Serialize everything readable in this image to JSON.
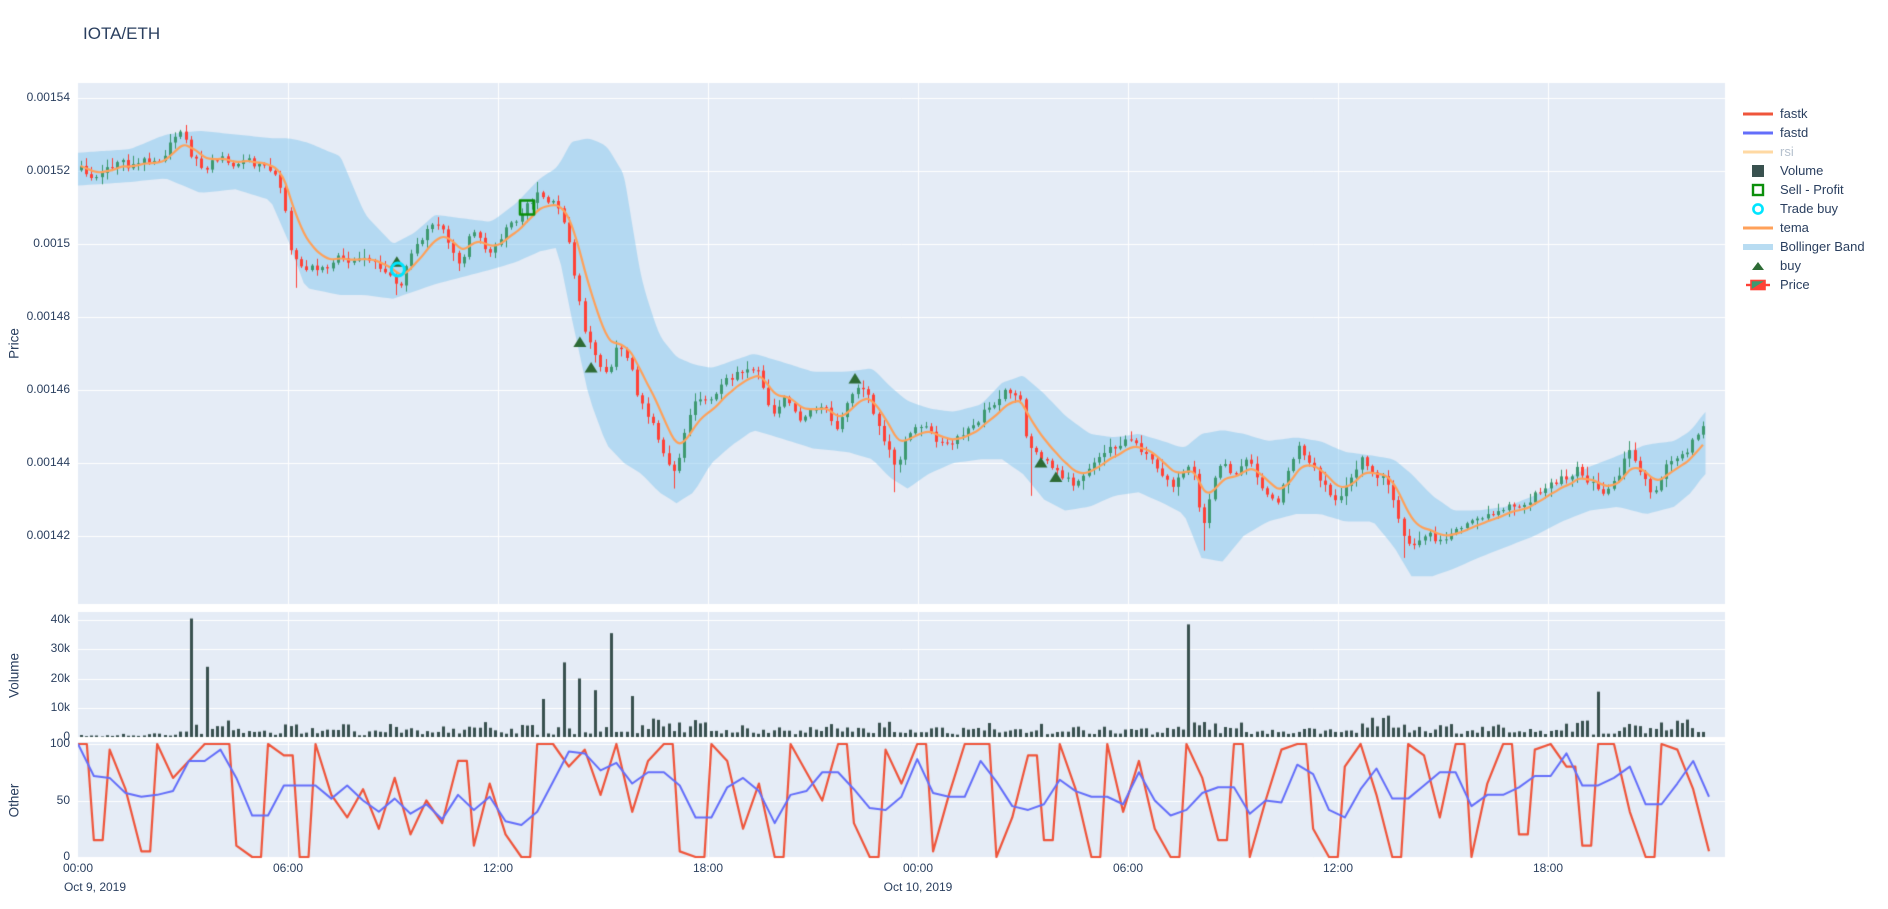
{
  "title": "IOTA/ETH",
  "colors": {
    "text": "#2a3f5f",
    "plot_bg": "#E5ECF6",
    "grid": "#ffffff",
    "candle_up": "#3D9970",
    "candle_down": "#FF4136",
    "tema": "#FFA15A",
    "bollinger_fill": "rgba(140,203,238,0.55)",
    "bollinger_swatch": "#B8DCF2",
    "fastk": "#EF553B",
    "fastd": "#636EFA",
    "rsi_muted": "#FFD9A3",
    "volume_bar": "#39514F",
    "buy_marker": "#2D6B35",
    "sell_marker": "#0B8F0B",
    "trade_buy_marker": "#00E5FF"
  },
  "axes": {
    "price": {
      "label": "Price",
      "ticks": [
        {
          "label": "0.00154",
          "value": 1540
        },
        {
          "label": "0.00152",
          "value": 1520
        },
        {
          "label": "0.0015",
          "value": 1500
        },
        {
          "label": "0.00148",
          "value": 1480
        },
        {
          "label": "0.00146",
          "value": 1460
        },
        {
          "label": "0.00144",
          "value": 1440
        },
        {
          "label": "0.00142",
          "value": 1420
        }
      ]
    },
    "volume": {
      "label": "Volume",
      "ticks": [
        {
          "label": "40k",
          "value": 40
        },
        {
          "label": "30k",
          "value": 30
        },
        {
          "label": "20k",
          "value": 20
        },
        {
          "label": "10k",
          "value": 10
        },
        {
          "label": "0",
          "value": 0
        }
      ]
    },
    "other": {
      "label": "Other",
      "ticks": [
        {
          "label": "100",
          "value": 100
        },
        {
          "label": "50",
          "value": 50
        },
        {
          "label": "0",
          "value": 0
        }
      ]
    },
    "time": {
      "ticks": [
        {
          "label": "00:00",
          "t": 0
        },
        {
          "label": "06:00",
          "t": 6
        },
        {
          "label": "12:00",
          "t": 12
        },
        {
          "label": "18:00",
          "t": 18
        },
        {
          "label": "00:00",
          "t": 24
        },
        {
          "label": "06:00",
          "t": 30
        },
        {
          "label": "12:00",
          "t": 36
        },
        {
          "label": "18:00",
          "t": 42
        }
      ],
      "dates": [
        {
          "label": "Oct 9, 2019",
          "t": 0,
          "dx": 17
        },
        {
          "label": "Oct 10, 2019",
          "t": 24,
          "dx": 0
        }
      ]
    }
  },
  "legend": {
    "items": [
      {
        "label": "fastk",
        "swatch": "line",
        "color": "#EF553B",
        "muted": false
      },
      {
        "label": "fastd",
        "swatch": "line",
        "color": "#636EFA",
        "muted": false
      },
      {
        "label": "rsi",
        "swatch": "line",
        "color": "#FFD9A3",
        "muted": true
      },
      {
        "label": "Volume",
        "swatch": "square-fill",
        "color": "#39514F",
        "muted": false
      },
      {
        "label": "Sell - Profit",
        "swatch": "square-open",
        "color": "#0B8F0B",
        "muted": false
      },
      {
        "label": "Trade buy",
        "swatch": "circle-open",
        "color": "#00E5FF",
        "muted": false
      },
      {
        "label": "tema",
        "swatch": "line",
        "color": "#FFA15A",
        "muted": false
      },
      {
        "label": "Bollinger Band",
        "swatch": "band",
        "color": "#B8DCF2",
        "muted": false
      },
      {
        "label": "buy",
        "swatch": "triangle-fill",
        "color": "#2D6B35",
        "muted": false
      },
      {
        "label": "Price",
        "swatch": "candle",
        "color": "#3D9970",
        "color2": "#FF4136",
        "muted": false
      }
    ]
  },
  "chart_data": {
    "type": "candlestick+volume+oscillator",
    "x_unit": "hours since Oct 9, 2019 00:00",
    "x_range": [
      0,
      47.06
    ],
    "price_unit_scale": 1e-06,
    "price_range_micro": [
      1401,
      1544
    ],
    "candle_interval_h": 0.15,
    "series": [
      {
        "name": "fastk",
        "type": "line",
        "panel": "other",
        "visible": true
      },
      {
        "name": "fastd",
        "type": "line",
        "panel": "other",
        "visible": true
      },
      {
        "name": "rsi",
        "type": "line",
        "panel": "other",
        "visible": false
      },
      {
        "name": "Volume",
        "type": "bar",
        "panel": "volume",
        "visible": true
      },
      {
        "name": "Sell - Profit",
        "type": "marker",
        "panel": "price",
        "visible": true
      },
      {
        "name": "Trade buy",
        "type": "marker",
        "panel": "price",
        "visible": true
      },
      {
        "name": "tema",
        "type": "line",
        "panel": "price",
        "visible": true
      },
      {
        "name": "Bollinger Band",
        "type": "band",
        "panel": "price",
        "visible": true
      },
      {
        "name": "buy",
        "type": "marker",
        "panel": "price",
        "visible": true
      },
      {
        "name": "Price",
        "type": "candlestick",
        "panel": "price",
        "visible": true
      }
    ],
    "price_keyframes": [
      [
        0,
        1521
      ],
      [
        0.4,
        1519
      ],
      [
        0.8,
        1520
      ],
      [
        1.2,
        1522
      ],
      [
        1.6,
        1521
      ],
      [
        2.0,
        1523
      ],
      [
        2.4,
        1524
      ],
      [
        2.8,
        1529
      ],
      [
        3.0,
        1530
      ],
      [
        3.3,
        1523
      ],
      [
        3.7,
        1521
      ],
      [
        4.0,
        1524
      ],
      [
        4.4,
        1521
      ],
      [
        4.8,
        1523
      ],
      [
        5.2,
        1522
      ],
      [
        5.6,
        1519
      ],
      [
        5.9,
        1512
      ],
      [
        6.1,
        1497
      ],
      [
        6.4,
        1494
      ],
      [
        7.0,
        1494
      ],
      [
        7.5,
        1496
      ],
      [
        8.0,
        1496
      ],
      [
        8.5,
        1494
      ],
      [
        8.9,
        1491
      ],
      [
        9.2,
        1489
      ],
      [
        9.5,
        1497
      ],
      [
        9.9,
        1503
      ],
      [
        10.3,
        1506
      ],
      [
        10.7,
        1497
      ],
      [
        10.9,
        1493
      ],
      [
        11.2,
        1503
      ],
      [
        11.5,
        1501
      ],
      [
        11.8,
        1498
      ],
      [
        12.1,
        1502
      ],
      [
        12.5,
        1507
      ],
      [
        12.9,
        1511
      ],
      [
        13.2,
        1514
      ],
      [
        13.5,
        1512
      ],
      [
        13.8,
        1509
      ],
      [
        14.0,
        1503
      ],
      [
        14.2,
        1489
      ],
      [
        14.5,
        1475
      ],
      [
        14.8,
        1468
      ],
      [
        15.1,
        1464
      ],
      [
        15.4,
        1471
      ],
      [
        15.7,
        1469
      ],
      [
        16.0,
        1458
      ],
      [
        16.3,
        1452
      ],
      [
        16.6,
        1447
      ],
      [
        16.9,
        1439
      ],
      [
        17.1,
        1437
      ],
      [
        17.4,
        1452
      ],
      [
        17.7,
        1459
      ],
      [
        18.0,
        1456
      ],
      [
        18.3,
        1461
      ],
      [
        18.7,
        1464
      ],
      [
        19.1,
        1466
      ],
      [
        19.5,
        1464
      ],
      [
        19.8,
        1452
      ],
      [
        20.2,
        1459
      ],
      [
        20.6,
        1452
      ],
      [
        21.0,
        1456
      ],
      [
        21.4,
        1455
      ],
      [
        21.7,
        1449
      ],
      [
        22.0,
        1458
      ],
      [
        22.4,
        1462
      ],
      [
        22.8,
        1452
      ],
      [
        23.1,
        1445
      ],
      [
        23.35,
        1439
      ],
      [
        23.6,
        1445
      ],
      [
        24.0,
        1450
      ],
      [
        24.4,
        1448
      ],
      [
        24.8,
        1444
      ],
      [
        25.2,
        1448
      ],
      [
        25.7,
        1452
      ],
      [
        26.1,
        1456
      ],
      [
        26.4,
        1459
      ],
      [
        26.9,
        1458
      ],
      [
        27.15,
        1444
      ],
      [
        27.5,
        1441
      ],
      [
        27.8,
        1440
      ],
      [
        28.1,
        1437
      ],
      [
        28.45,
        1433
      ],
      [
        28.8,
        1438
      ],
      [
        29.3,
        1442
      ],
      [
        29.7,
        1445
      ],
      [
        30.1,
        1446
      ],
      [
        30.5,
        1443
      ],
      [
        30.9,
        1437
      ],
      [
        31.3,
        1434
      ],
      [
        31.7,
        1438
      ],
      [
        31.95,
        1436
      ],
      [
        32.1,
        1421
      ],
      [
        32.35,
        1432
      ],
      [
        32.6,
        1440
      ],
      [
        33.0,
        1437
      ],
      [
        33.4,
        1441
      ],
      [
        33.8,
        1434
      ],
      [
        34.2,
        1428
      ],
      [
        34.6,
        1439
      ],
      [
        34.9,
        1445
      ],
      [
        35.3,
        1439
      ],
      [
        35.7,
        1432
      ],
      [
        36.0,
        1428
      ],
      [
        36.3,
        1435
      ],
      [
        36.7,
        1441
      ],
      [
        37.1,
        1437
      ],
      [
        37.5,
        1434
      ],
      [
        37.85,
        1420
      ],
      [
        38.2,
        1417
      ],
      [
        38.6,
        1420
      ],
      [
        39.0,
        1419
      ],
      [
        39.5,
        1422
      ],
      [
        40.0,
        1425
      ],
      [
        40.5,
        1426
      ],
      [
        41.0,
        1428
      ],
      [
        41.5,
        1430
      ],
      [
        42.0,
        1433
      ],
      [
        42.4,
        1436
      ],
      [
        42.8,
        1438
      ],
      [
        43.2,
        1435
      ],
      [
        43.6,
        1432
      ],
      [
        44.0,
        1436
      ],
      [
        44.3,
        1444
      ],
      [
        44.6,
        1438
      ],
      [
        45.0,
        1431
      ],
      [
        45.4,
        1439
      ],
      [
        45.8,
        1442
      ],
      [
        46.0,
        1444
      ],
      [
        46.3,
        1448
      ],
      [
        46.5,
        1452
      ],
      [
        46.6,
        1449
      ]
    ],
    "bollinger_keyframes": [
      [
        0,
        1525,
        1516
      ],
      [
        1.5,
        1526,
        1517
      ],
      [
        2.5,
        1530,
        1518
      ],
      [
        3.5,
        1531,
        1514
      ],
      [
        4.5,
        1530,
        1515
      ],
      [
        5.5,
        1529,
        1512
      ],
      [
        6.0,
        1529,
        1501
      ],
      [
        6.5,
        1528,
        1488
      ],
      [
        7.5,
        1524,
        1486
      ],
      [
        8.2,
        1508,
        1486
      ],
      [
        9.0,
        1500,
        1485
      ],
      [
        9.6,
        1503,
        1487
      ],
      [
        10.2,
        1508,
        1489
      ],
      [
        11.0,
        1507,
        1491
      ],
      [
        11.8,
        1506,
        1493
      ],
      [
        12.5,
        1511,
        1495
      ],
      [
        13.2,
        1518,
        1498
      ],
      [
        13.7,
        1521,
        1499
      ],
      [
        14.1,
        1528,
        1480
      ],
      [
        14.6,
        1529,
        1458
      ],
      [
        15.1,
        1527,
        1445
      ],
      [
        15.6,
        1519,
        1440
      ],
      [
        16.1,
        1490,
        1437
      ],
      [
        16.6,
        1475,
        1432
      ],
      [
        17.1,
        1469,
        1429
      ],
      [
        17.6,
        1467,
        1432
      ],
      [
        18.1,
        1466,
        1440
      ],
      [
        18.7,
        1468,
        1445
      ],
      [
        19.3,
        1470,
        1449
      ],
      [
        20.0,
        1468,
        1447
      ],
      [
        21.0,
        1465,
        1444
      ],
      [
        22.0,
        1465,
        1443
      ],
      [
        22.7,
        1466,
        1441
      ],
      [
        23.2,
        1461,
        1436
      ],
      [
        23.7,
        1457,
        1433
      ],
      [
        24.3,
        1455,
        1437
      ],
      [
        25.0,
        1454,
        1440
      ],
      [
        25.8,
        1456,
        1441
      ],
      [
        26.4,
        1462,
        1441
      ],
      [
        27.0,
        1464,
        1437
      ],
      [
        27.6,
        1459,
        1430
      ],
      [
        28.2,
        1453,
        1427
      ],
      [
        28.9,
        1448,
        1428
      ],
      [
        29.6,
        1447,
        1431
      ],
      [
        30.3,
        1448,
        1432
      ],
      [
        31.0,
        1446,
        1429
      ],
      [
        31.6,
        1444,
        1426
      ],
      [
        32.1,
        1448,
        1414
      ],
      [
        32.7,
        1449,
        1413
      ],
      [
        33.3,
        1448,
        1420
      ],
      [
        34.0,
        1446,
        1424
      ],
      [
        34.8,
        1447,
        1426
      ],
      [
        35.5,
        1446,
        1426
      ],
      [
        36.2,
        1443,
        1424
      ],
      [
        37.0,
        1442,
        1424
      ],
      [
        37.6,
        1441,
        1417
      ],
      [
        38.1,
        1437,
        1409
      ],
      [
        38.7,
        1431,
        1409
      ],
      [
        39.3,
        1427,
        1411
      ],
      [
        40.0,
        1427,
        1414
      ],
      [
        40.8,
        1428,
        1417
      ],
      [
        41.6,
        1431,
        1420
      ],
      [
        42.4,
        1435,
        1424
      ],
      [
        43.2,
        1439,
        1427
      ],
      [
        44.0,
        1442,
        1428
      ],
      [
        44.8,
        1445,
        1426
      ],
      [
        45.6,
        1446,
        1428
      ],
      [
        46.1,
        1449,
        1432
      ],
      [
        46.4,
        1453,
        1436
      ],
      [
        46.6,
        1455,
        1438
      ]
    ],
    "wick_events": [
      [
        3.0,
        1531,
        "high"
      ],
      [
        6.15,
        1488,
        "low"
      ],
      [
        9.1,
        1486,
        "low"
      ],
      [
        13.1,
        1517,
        "high"
      ],
      [
        17.0,
        1433,
        "low"
      ],
      [
        23.3,
        1432,
        "low"
      ],
      [
        27.2,
        1431,
        "low"
      ],
      [
        32.1,
        1416,
        "low"
      ],
      [
        37.9,
        1414,
        "low"
      ],
      [
        44.3,
        1446,
        "high"
      ]
    ],
    "volume_bins_k": [
      1.2,
      0.8,
      1.5,
      1.0,
      2.0,
      1.4,
      40.5,
      24.0,
      8.0,
      4.5,
      3.0,
      2.5,
      6.0,
      5.0,
      3.5,
      6.0,
      2.5,
      3.0,
      7.0,
      4.0,
      3.0,
      5.0,
      4.5,
      8.0,
      6.0,
      4.0,
      8.0,
      13.0,
      25.5,
      20.0,
      16.0,
      35.5,
      14.0,
      12.0,
      9.0,
      7.0,
      12.0,
      5.0,
      4.0,
      6.5,
      4.0,
      7.5,
      3.5,
      5.5,
      7.0,
      4.5,
      6.0,
      8.0,
      3.5,
      3.0,
      4.5,
      2.5,
      5.0,
      6.5,
      3.0,
      4.0,
      7.0,
      3.5,
      5.0,
      4.0,
      5.0,
      4.0,
      6.0,
      3.5,
      5.5,
      38.5,
      7.0,
      5.0,
      6.5,
      4.0,
      5.5,
      3.5,
      5.0,
      4.5,
      3.0,
      6.0,
      9.0,
      12.0,
      5.5,
      4.0,
      7.0,
      3.5,
      5.0,
      6.0,
      4.5,
      5.5,
      4.0,
      6.0,
      7.5,
      15.5,
      5.0,
      7.0,
      4.5,
      6.5,
      8.5,
      5.0
    ],
    "volume_range_k": [
      0,
      42.7
    ],
    "oscillator_range": [
      0,
      100
    ],
    "fastk": [
      100,
      15,
      95,
      60,
      5,
      100,
      70,
      85,
      100,
      100,
      10,
      0,
      100,
      90,
      0,
      100,
      55,
      35,
      60,
      25,
      70,
      20,
      50,
      30,
      85,
      10,
      65,
      20,
      0,
      100,
      100,
      80,
      95,
      55,
      100,
      40,
      85,
      100,
      5,
      0,
      100,
      85,
      25,
      65,
      0,
      100,
      75,
      50,
      100,
      30,
      0,
      95,
      65,
      100,
      5,
      55,
      100,
      100,
      0,
      35,
      90,
      15,
      100,
      60,
      0,
      100,
      40,
      85,
      25,
      0,
      100,
      70,
      15,
      100,
      0,
      50,
      95,
      100,
      25,
      0,
      80,
      100,
      55,
      0,
      100,
      90,
      35,
      100,
      0,
      65,
      100,
      20,
      95,
      100,
      80,
      10,
      100,
      100,
      40,
      0,
      100,
      95,
      60,
      5
    ],
    "fastd_smoothing": 3,
    "tema_alpha": 0.25,
    "markers": {
      "trade_buy": [
        [
          9.14,
          1493
        ]
      ],
      "sell_profit": [
        [
          12.83,
          1510
        ]
      ],
      "buy": [
        [
          9.11,
          1495
        ],
        [
          14.34,
          1473
        ],
        [
          14.66,
          1466
        ],
        [
          22.2,
          1463
        ],
        [
          27.51,
          1440
        ],
        [
          27.94,
          1436
        ]
      ]
    }
  }
}
